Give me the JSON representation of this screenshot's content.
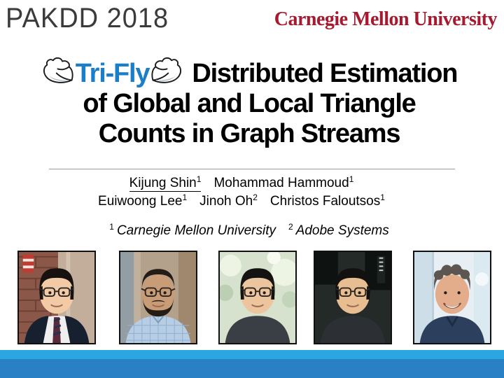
{
  "header": {
    "conference": "PAKDD 2018",
    "university_wordmark": "Carnegie Mellon University"
  },
  "title": {
    "name": "Tri-Fly",
    "rest_line1": "Distributed Estimation",
    "line2": "of Global and Local Triangle",
    "line3": "Counts in Graph Streams",
    "name_color": "#1b7ec8",
    "icons": [
      "wing-icon-left",
      "wing-icon-right"
    ]
  },
  "authors": {
    "rows": [
      [
        {
          "name": "Kijung Shin",
          "sup": "1",
          "underline": true
        },
        {
          "name": "Mohammad Hammoud",
          "sup": "1",
          "underline": false
        }
      ],
      [
        {
          "name": "Euiwoong Lee",
          "sup": "1",
          "underline": false
        },
        {
          "name": "Jinoh Oh",
          "sup": "2",
          "underline": false
        },
        {
          "name": "Christos Faloutsos",
          "sup": "1",
          "underline": false
        }
      ]
    ]
  },
  "affiliations": [
    {
      "sup": "1",
      "name": "Carnegie Mellon University"
    },
    {
      "sup": "2",
      "name": "Adobe Systems"
    }
  ],
  "photos": [
    {
      "person": "Kijung Shin",
      "scene": "brick",
      "bg": "#8a5748",
      "bg2": "#c3ae9c",
      "skin": "#f2cba6",
      "hair": "#17120f",
      "hairStyle": "fringe",
      "glasses": true,
      "beard": false,
      "smile": false,
      "shirt": "#16202e",
      "shirtDetail": "suit-tie",
      "tie": "#5b2a3a"
    },
    {
      "person": "Mohammad Hammoud",
      "scene": "blurTan",
      "bg": "#b3a18c",
      "bg2": "#8b9daa",
      "skin": "#c89c77",
      "hair": "#241c15",
      "hairStyle": "short",
      "glasses": true,
      "beard": true,
      "smile": false,
      "shirt": "#b6cde4",
      "shirtDetail": "check",
      "tie": ""
    },
    {
      "person": "Euiwoong Lee",
      "scene": "foliage",
      "bg": "#d6e2ce",
      "bg2": "#eef4e4",
      "skin": "#ecc49d",
      "hair": "#151311",
      "hairStyle": "fringe",
      "glasses": true,
      "beard": false,
      "smile": false,
      "shirt": "#3a3e45",
      "shirtDetail": "plain",
      "tie": ""
    },
    {
      "person": "Jinoh Oh",
      "scene": "darkroom",
      "bg": "#232a28",
      "bg2": "#0e1211",
      "skin": "#e8bd92",
      "hair": "#131110",
      "hairStyle": "fringe",
      "glasses": true,
      "beard": false,
      "smile": false,
      "shirt": "#2c2f33",
      "shirtDetail": "plain",
      "tie": ""
    },
    {
      "person": "Christos Faloutsos",
      "scene": "bright",
      "bg": "#e7eff5",
      "bg2": "#cddee9",
      "skin": "#e3ac8a",
      "hair": "#5d5650",
      "hairStyle": "curly",
      "glasses": false,
      "beard": false,
      "smile": true,
      "shirt": "#2c3f5c",
      "shirtDetail": "polo",
      "tie": ""
    }
  ],
  "footer": {
    "stripe_color": "#2aa7e0",
    "bar_color": "#2a80c4"
  }
}
